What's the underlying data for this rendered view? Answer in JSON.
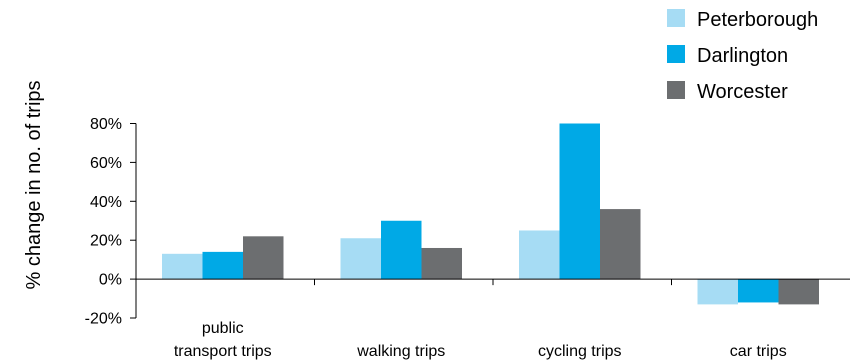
{
  "chart_data": {
    "type": "bar",
    "title": "",
    "xlabel": "",
    "ylabel": "% change in no. of trips",
    "ylim": [
      -20,
      80
    ],
    "yticks": [
      "80%",
      "60%",
      "40%",
      "20%",
      "0%",
      "-20%"
    ],
    "ytick_values": [
      80,
      60,
      40,
      20,
      0,
      -20
    ],
    "grid": false,
    "legend_position": "top-right",
    "categories": [
      [
        "public",
        "transport trips"
      ],
      [
        "walking trips"
      ],
      [
        "cycling trips"
      ],
      [
        "car trips"
      ]
    ],
    "series": [
      {
        "name": "Peterborough",
        "color": "#a6dcf4",
        "values": [
          13,
          21,
          25,
          -13
        ]
      },
      {
        "name": "Darlington",
        "color": "#00a9e6",
        "values": [
          14,
          30,
          80,
          -12
        ]
      },
      {
        "name": "Worcester",
        "color": "#6c6e70",
        "values": [
          22,
          16,
          36,
          -13
        ]
      }
    ]
  }
}
